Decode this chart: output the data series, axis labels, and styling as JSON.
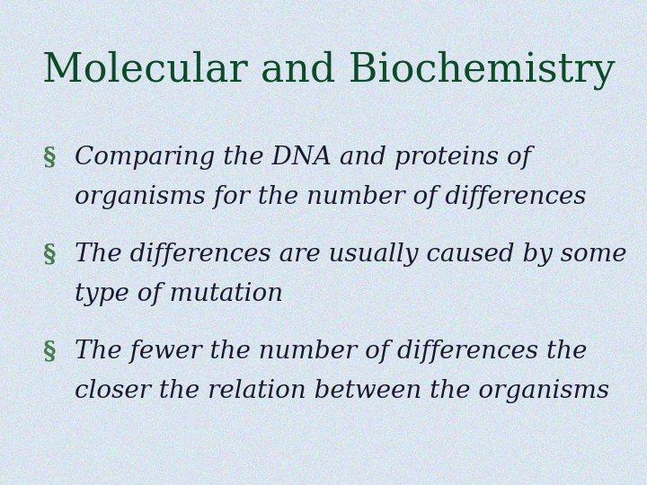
{
  "title": "Molecular and Biochemistry",
  "title_color": "#0d4a2a",
  "title_fontsize": 32,
  "bullet_color": "#4a7c4e",
  "text_color": "#1a1a2e",
  "bullet_char": "§",
  "bullets": [
    {
      "line1": "Comparing the DNA and proteins of",
      "line2": "organisms for the number of differences"
    },
    {
      "line1": "The differences are usually caused by some",
      "line2": "type of mutation"
    },
    {
      "line1": "The fewer the number of differences the",
      "line2": "closer the relation between the organisms"
    }
  ],
  "bullet_fontsize": 20,
  "bg_base": [
    0.855,
    0.898,
    0.937
  ],
  "bg_noise_std": 0.03,
  "figsize": [
    7.2,
    5.4
  ],
  "dpi": 100
}
